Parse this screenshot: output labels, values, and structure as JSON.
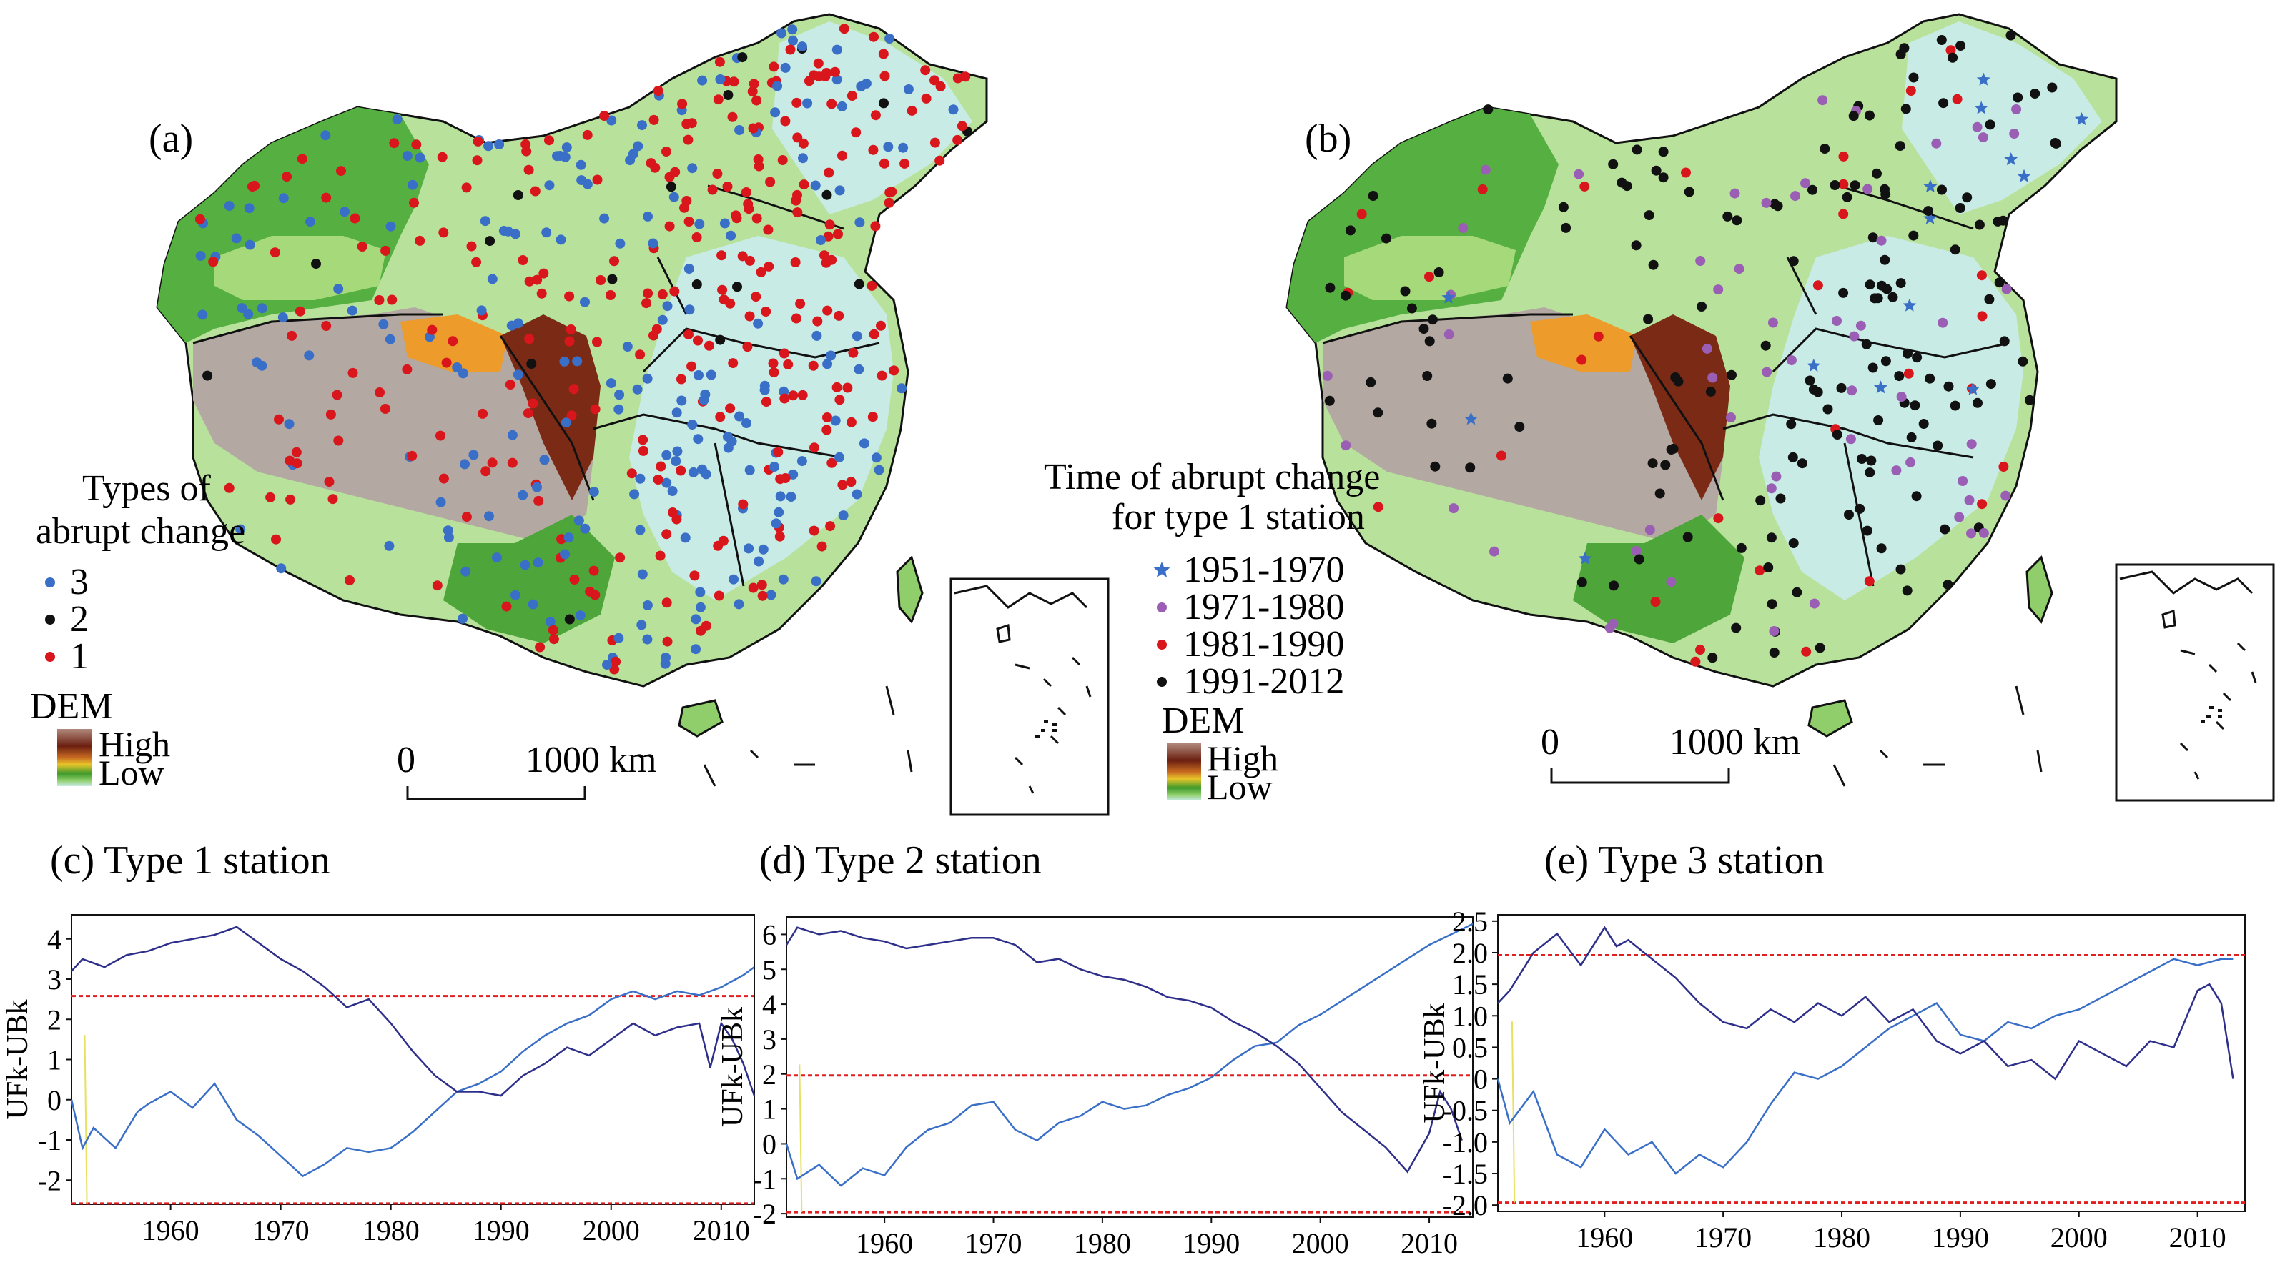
{
  "map_a": {
    "label": "(a)",
    "legend_title_line1": "Types of",
    "legend_title_line2": "abrupt change",
    "legend_items": [
      {
        "label": "3",
        "color": "#3a6fc7",
        "symbol": "dot"
      },
      {
        "label": "2",
        "color": "#111111",
        "symbol": "dot"
      },
      {
        "label": "1",
        "color": "#d8161c",
        "symbol": "dot"
      }
    ],
    "dem_title": "DEM",
    "dem_high": "High",
    "dem_low": "Low",
    "scale_zero": "0",
    "scale_label": "1000 km"
  },
  "map_b": {
    "label": "(b)",
    "legend_title_line1": "Time of abrupt change",
    "legend_title_line2": "for type 1 station",
    "legend_items": [
      {
        "label": "1951-1970",
        "color": "#3a6fc7",
        "symbol": "star"
      },
      {
        "label": "1971-1980",
        "color": "#9a5fb4",
        "symbol": "dot"
      },
      {
        "label": "1981-1990",
        "color": "#d8161c",
        "symbol": "dot"
      },
      {
        "label": "1991-2012",
        "color": "#111111",
        "symbol": "dot"
      }
    ],
    "dem_title": "DEM",
    "dem_high": "High",
    "dem_low": "Low",
    "scale_zero": "0",
    "scale_label": "1000 km"
  },
  "dem_colors": [
    "#8b4f3a",
    "#6b1f10",
    "#c76a20",
    "#e9c52a",
    "#3f9a2c",
    "#8fce6a",
    "#c9ebe6"
  ],
  "chart_data": [
    {
      "type": "line",
      "title": "(c) Type 1 station",
      "ylabel": "UFk-UBk",
      "x_ticks": [
        1960,
        1970,
        1980,
        1990,
        2000,
        2010
      ],
      "y_ticks": [
        -2,
        -1,
        0,
        1,
        2,
        3,
        4
      ],
      "xlim": [
        1951,
        2013
      ],
      "ylim": [
        -2.6,
        4.6
      ],
      "confidence": [
        2.58,
        -2.58
      ],
      "series": [
        {
          "role": "UF",
          "x": [
            1951,
            1952,
            1953,
            1955,
            1957,
            1958,
            1960,
            1962,
            1964,
            1966,
            1968,
            1970,
            1972,
            1974,
            1976,
            1978,
            1980,
            1982,
            1984,
            1986,
            1988,
            1990,
            1992,
            1994,
            1996,
            1998,
            2000,
            2002,
            2004,
            2006,
            2008,
            2010,
            2012,
            2013
          ],
          "y": [
            0.0,
            -1.2,
            -0.7,
            -1.2,
            -0.3,
            -0.1,
            0.2,
            -0.2,
            0.4,
            -0.5,
            -0.9,
            -1.4,
            -1.9,
            -1.6,
            -1.2,
            -1.3,
            -1.2,
            -0.8,
            -0.3,
            0.2,
            0.4,
            0.7,
            1.2,
            1.6,
            1.9,
            2.1,
            2.5,
            2.7,
            2.5,
            2.7,
            2.6,
            2.8,
            3.1,
            3.3
          ]
        },
        {
          "role": "UB",
          "x": [
            1951,
            1952,
            1954,
            1956,
            1958,
            1960,
            1962,
            1964,
            1966,
            1968,
            1970,
            1972,
            1974,
            1976,
            1978,
            1980,
            1982,
            1984,
            1986,
            1988,
            1990,
            1992,
            1994,
            1996,
            1998,
            2000,
            2002,
            2004,
            2006,
            2008,
            2009,
            2010,
            2011,
            2012,
            2013
          ],
          "y": [
            3.2,
            3.5,
            3.3,
            3.6,
            3.7,
            3.9,
            4.0,
            4.1,
            4.3,
            3.9,
            3.5,
            3.2,
            2.8,
            2.3,
            2.5,
            1.9,
            1.2,
            0.6,
            0.2,
            0.2,
            0.1,
            0.6,
            0.9,
            1.3,
            1.1,
            1.5,
            1.9,
            1.6,
            1.8,
            1.9,
            0.8,
            1.9,
            1.5,
            0.9,
            0.1
          ]
        }
      ]
    },
    {
      "type": "line",
      "title": "(d) Type 2 station",
      "ylabel": "UFk-UBk",
      "x_ticks": [
        1960,
        1970,
        1980,
        1990,
        2000,
        2010
      ],
      "y_ticks": [
        -2,
        -1,
        0,
        1,
        2,
        3,
        4,
        5,
        6
      ],
      "xlim": [
        1951,
        2014
      ],
      "ylim": [
        -2.1,
        6.5
      ],
      "confidence": [
        1.96,
        -1.96
      ],
      "series": [
        {
          "role": "UF",
          "x": [
            1951,
            1952,
            1954,
            1956,
            1958,
            1960,
            1962,
            1964,
            1966,
            1968,
            1970,
            1972,
            1974,
            1976,
            1978,
            1980,
            1982,
            1984,
            1986,
            1988,
            1990,
            1992,
            1994,
            1996,
            1998,
            2000,
            2002,
            2004,
            2006,
            2008,
            2010,
            2012,
            2014
          ],
          "y": [
            0.0,
            -1.0,
            -0.6,
            -1.2,
            -0.7,
            -0.9,
            -0.1,
            0.4,
            0.6,
            1.1,
            1.2,
            0.4,
            0.1,
            0.6,
            0.8,
            1.2,
            1.0,
            1.1,
            1.4,
            1.6,
            1.9,
            2.4,
            2.8,
            2.9,
            3.4,
            3.7,
            4.1,
            4.5,
            4.9,
            5.3,
            5.7,
            6.0,
            6.3
          ]
        },
        {
          "role": "UB",
          "x": [
            1951,
            1952,
            1954,
            1956,
            1958,
            1960,
            1962,
            1964,
            1966,
            1968,
            1970,
            1972,
            1974,
            1976,
            1978,
            1980,
            1982,
            1984,
            1986,
            1988,
            1990,
            1992,
            1994,
            1996,
            1998,
            2000,
            2002,
            2004,
            2006,
            2008,
            2010,
            2011,
            2012,
            2013
          ],
          "y": [
            5.7,
            6.2,
            6.0,
            6.1,
            5.9,
            5.8,
            5.6,
            5.7,
            5.8,
            5.9,
            5.9,
            5.7,
            5.2,
            5.3,
            5.0,
            4.8,
            4.7,
            4.5,
            4.2,
            4.1,
            3.9,
            3.5,
            3.2,
            2.8,
            2.3,
            1.6,
            0.9,
            0.4,
            -0.1,
            -0.8,
            0.3,
            1.5,
            1.0,
            0.1
          ]
        }
      ]
    },
    {
      "type": "line",
      "title": "(e) Type 3 station",
      "ylabel": "UFk-UBk",
      "x_ticks": [
        1960,
        1970,
        1980,
        1990,
        2000,
        2010
      ],
      "y_ticks": [
        -2.0,
        -1.5,
        -1.0,
        -0.5,
        0,
        0.5,
        1.0,
        1.5,
        2.0,
        2.5
      ],
      "xlim": [
        1951,
        2014
      ],
      "ylim": [
        -2.1,
        2.6
      ],
      "confidence": [
        1.96,
        -1.96
      ],
      "series": [
        {
          "role": "UF",
          "x": [
            1951,
            1952,
            1954,
            1956,
            1958,
            1960,
            1962,
            1964,
            1966,
            1968,
            1970,
            1972,
            1974,
            1976,
            1978,
            1980,
            1982,
            1984,
            1986,
            1988,
            1990,
            1992,
            1994,
            1996,
            1998,
            2000,
            2002,
            2004,
            2006,
            2008,
            2010,
            2012,
            2013
          ],
          "y": [
            0.0,
            -0.7,
            -0.2,
            -1.2,
            -1.4,
            -0.8,
            -1.2,
            -1.0,
            -1.5,
            -1.2,
            -1.4,
            -1.0,
            -0.4,
            0.1,
            0.0,
            0.2,
            0.5,
            0.8,
            1.0,
            1.2,
            0.7,
            0.6,
            0.9,
            0.8,
            1.0,
            1.1,
            1.3,
            1.5,
            1.7,
            1.9,
            1.8,
            1.9,
            1.9
          ]
        },
        {
          "role": "UB",
          "x": [
            1951,
            1952,
            1954,
            1956,
            1958,
            1960,
            1961,
            1962,
            1964,
            1966,
            1968,
            1970,
            1972,
            1974,
            1976,
            1978,
            1980,
            1982,
            1984,
            1986,
            1988,
            1990,
            1992,
            1994,
            1996,
            1998,
            2000,
            2002,
            2004,
            2006,
            2008,
            2010,
            2011,
            2012,
            2013
          ],
          "y": [
            1.2,
            1.4,
            2.0,
            2.3,
            1.8,
            2.4,
            2.1,
            2.2,
            1.9,
            1.6,
            1.2,
            0.9,
            0.8,
            1.1,
            0.9,
            1.2,
            1.0,
            1.3,
            0.9,
            1.1,
            0.6,
            0.4,
            0.6,
            0.2,
            0.3,
            0.0,
            0.6,
            0.4,
            0.2,
            0.6,
            0.5,
            1.4,
            1.5,
            1.2,
            0.0
          ]
        }
      ]
    }
  ]
}
